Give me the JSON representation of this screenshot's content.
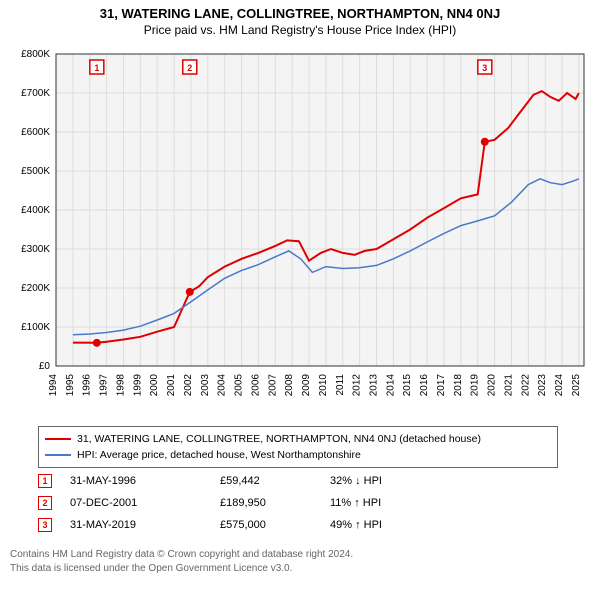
{
  "title": "31, WATERING LANE, COLLINGTREE, NORTHAMPTON, NN4 0NJ",
  "subtitle": "Price paid vs. HM Land Registry's House Price Index (HPI)",
  "chart": {
    "type": "line",
    "plot_bg": "#f4f4f4",
    "outer_bg": "#ffffff",
    "grid_color": "#dddddd",
    "axis_color": "#333333",
    "tick_fontsize": 10,
    "x_years": [
      1994,
      1995,
      1996,
      1997,
      1998,
      1999,
      2000,
      2001,
      2002,
      2003,
      2004,
      2005,
      2006,
      2007,
      2008,
      2009,
      2010,
      2011,
      2012,
      2013,
      2014,
      2015,
      2016,
      2017,
      2018,
      2019,
      2020,
      2021,
      2022,
      2023,
      2024,
      2025
    ],
    "xlim": [
      1994,
      2025.3
    ],
    "ylim": [
      0,
      800000
    ],
    "ytick_step": 100000,
    "ytick_labels": [
      "£0",
      "£100K",
      "£200K",
      "£300K",
      "£400K",
      "£500K",
      "£600K",
      "£700K",
      "£800K"
    ],
    "series": [
      {
        "name": "property",
        "color": "#e00000",
        "width": 2,
        "points": [
          [
            1995.0,
            60000
          ],
          [
            1996.42,
            59442
          ],
          [
            1997.0,
            62000
          ],
          [
            1998.0,
            68000
          ],
          [
            1999.0,
            75000
          ],
          [
            2000.0,
            88000
          ],
          [
            2001.0,
            100000
          ],
          [
            2001.93,
            189950
          ],
          [
            2002.5,
            205000
          ],
          [
            2003.0,
            228000
          ],
          [
            2004.0,
            255000
          ],
          [
            2005.0,
            275000
          ],
          [
            2006.0,
            290000
          ],
          [
            2007.0,
            308000
          ],
          [
            2007.7,
            322000
          ],
          [
            2008.4,
            320000
          ],
          [
            2009.0,
            270000
          ],
          [
            2009.7,
            290000
          ],
          [
            2010.3,
            300000
          ],
          [
            2011.0,
            290000
          ],
          [
            2011.7,
            285000
          ],
          [
            2012.3,
            295000
          ],
          [
            2013.0,
            300000
          ],
          [
            2014.0,
            325000
          ],
          [
            2015.0,
            350000
          ],
          [
            2016.0,
            380000
          ],
          [
            2017.0,
            405000
          ],
          [
            2018.0,
            430000
          ],
          [
            2019.0,
            440000
          ],
          [
            2019.42,
            575000
          ],
          [
            2020.0,
            580000
          ],
          [
            2020.8,
            610000
          ],
          [
            2021.5,
            650000
          ],
          [
            2022.3,
            695000
          ],
          [
            2022.8,
            705000
          ],
          [
            2023.3,
            690000
          ],
          [
            2023.8,
            680000
          ],
          [
            2024.3,
            700000
          ],
          [
            2024.8,
            685000
          ],
          [
            2025.0,
            700000
          ]
        ]
      },
      {
        "name": "hpi",
        "color": "#4a79c7",
        "width": 1.5,
        "points": [
          [
            1995.0,
            80000
          ],
          [
            1996.0,
            82000
          ],
          [
            1997.0,
            86000
          ],
          [
            1998.0,
            92000
          ],
          [
            1999.0,
            102000
          ],
          [
            2000.0,
            118000
          ],
          [
            2001.0,
            135000
          ],
          [
            2002.0,
            165000
          ],
          [
            2003.0,
            195000
          ],
          [
            2004.0,
            225000
          ],
          [
            2005.0,
            245000
          ],
          [
            2006.0,
            260000
          ],
          [
            2007.0,
            280000
          ],
          [
            2007.8,
            295000
          ],
          [
            2008.5,
            275000
          ],
          [
            2009.2,
            240000
          ],
          [
            2010.0,
            255000
          ],
          [
            2011.0,
            250000
          ],
          [
            2012.0,
            252000
          ],
          [
            2013.0,
            258000
          ],
          [
            2014.0,
            275000
          ],
          [
            2015.0,
            295000
          ],
          [
            2016.0,
            318000
          ],
          [
            2017.0,
            340000
          ],
          [
            2018.0,
            360000
          ],
          [
            2019.0,
            372000
          ],
          [
            2020.0,
            385000
          ],
          [
            2021.0,
            420000
          ],
          [
            2022.0,
            465000
          ],
          [
            2022.7,
            480000
          ],
          [
            2023.3,
            470000
          ],
          [
            2024.0,
            465000
          ],
          [
            2024.7,
            475000
          ],
          [
            2025.0,
            480000
          ]
        ]
      }
    ],
    "sale_markers": [
      {
        "n": "1",
        "x": 1996.42,
        "y": 59442
      },
      {
        "n": "2",
        "x": 2001.93,
        "y": 189950
      },
      {
        "n": "3",
        "x": 2019.42,
        "y": 575000
      }
    ],
    "marker_border": "#e00000",
    "marker_fill": "#e00000",
    "marker_box_bg": "#ffffff"
  },
  "legend": {
    "items": [
      {
        "color": "#e00000",
        "label": "31, WATERING LANE, COLLINGTREE, NORTHAMPTON, NN4 0NJ (detached house)"
      },
      {
        "color": "#4a79c7",
        "label": "HPI: Average price, detached house, West Northamptonshire"
      }
    ]
  },
  "events": [
    {
      "n": "1",
      "date": "31-MAY-1996",
      "price": "£59,442",
      "diff": "32% ↓ HPI"
    },
    {
      "n": "2",
      "date": "07-DEC-2001",
      "price": "£189,950",
      "diff": "11% ↑ HPI"
    },
    {
      "n": "3",
      "date": "31-MAY-2019",
      "price": "£575,000",
      "diff": "49% ↑ HPI"
    }
  ],
  "event_marker_color": "#e00000",
  "footer_line1": "Contains HM Land Registry data © Crown copyright and database right 2024.",
  "footer_line2": "This data is licensed under the Open Government Licence v3.0."
}
